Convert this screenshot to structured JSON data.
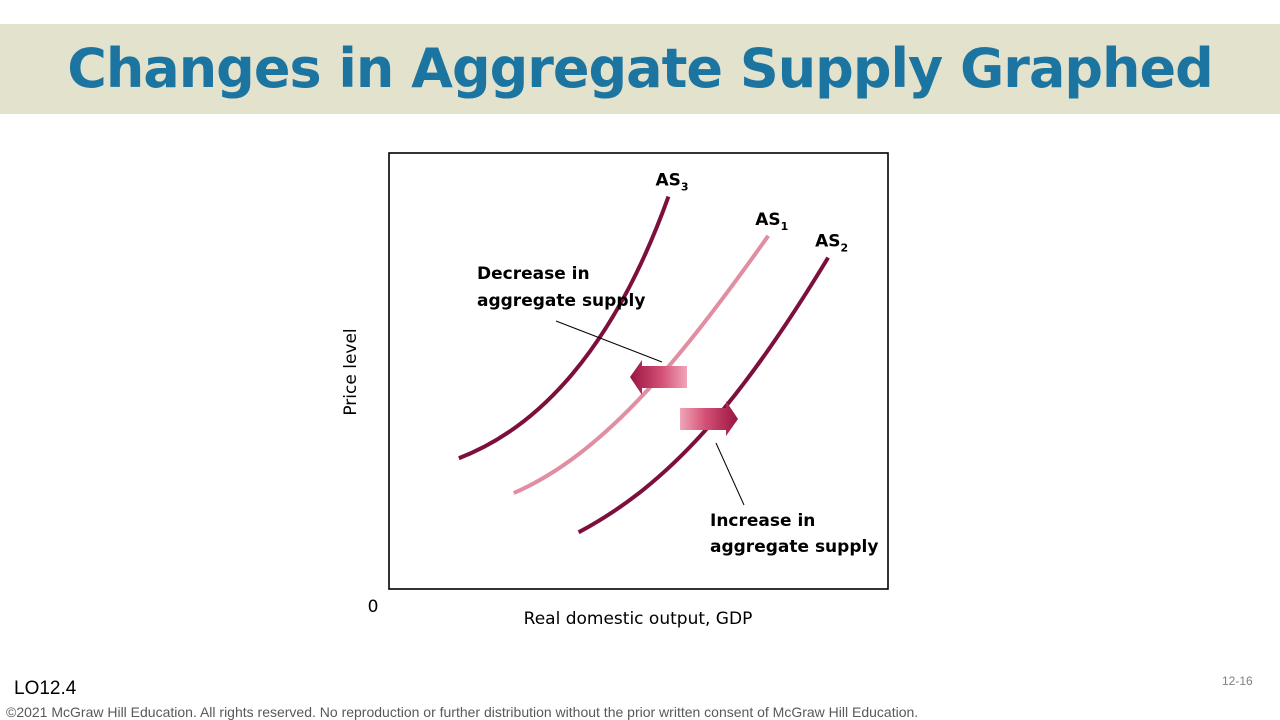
{
  "slide": {
    "title": "Changes in Aggregate Supply Graphed",
    "learning_objective": "LO12.4",
    "slide_number": "12-16",
    "copyright": "©2021 McGraw Hill Education. All rights reserved. No reproduction or further distribution without the prior written consent of McGraw Hill Education."
  },
  "chart_data": {
    "type": "line",
    "title": "",
    "xlabel": "Real domestic output, GDP",
    "ylabel": "Price level",
    "origin_label": "0",
    "grid": false,
    "axes_box": true,
    "ticks": false,
    "series": [
      {
        "name": "AS",
        "subscript": "3",
        "color": "#7d0f3d",
        "points": [
          [
            0.14,
            0.3
          ],
          [
            0.3,
            0.37
          ],
          [
            0.45,
            0.55
          ],
          [
            0.56,
            0.9
          ]
        ]
      },
      {
        "name": "AS",
        "subscript": "1",
        "color": "#e28ea2",
        "points": [
          [
            0.25,
            0.22
          ],
          [
            0.43,
            0.31
          ],
          [
            0.58,
            0.52
          ],
          [
            0.76,
            0.81
          ]
        ]
      },
      {
        "name": "AS",
        "subscript": "2",
        "color": "#7d0f3d",
        "points": [
          [
            0.38,
            0.13
          ],
          [
            0.56,
            0.24
          ],
          [
            0.7,
            0.42
          ],
          [
            0.88,
            0.76
          ]
        ]
      }
    ],
    "annotations": [
      {
        "line1": "Decrease in",
        "line2": "aggregate supply",
        "arrow_direction": "left",
        "shift": "AS1 to AS3"
      },
      {
        "line1": "Increase in",
        "line2": "aggregate supply",
        "arrow_direction": "right",
        "shift": "AS1 to AS2"
      }
    ]
  }
}
